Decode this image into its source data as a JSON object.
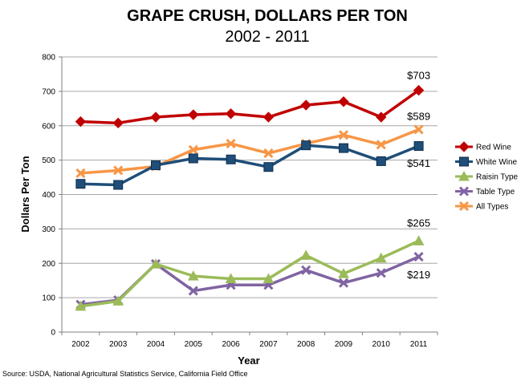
{
  "chart_data": {
    "type": "line",
    "title": "GRAPE CRUSH, DOLLARS PER TON",
    "subtitle": "2002 - 2011",
    "xlabel": "Year",
    "ylabel": "Dollars Per Ton",
    "ylim": [
      0,
      800
    ],
    "yticks": [
      "0",
      "100",
      "200",
      "300",
      "400",
      "500",
      "600",
      "700",
      "800"
    ],
    "categories": [
      "2002",
      "2003",
      "2004",
      "2005",
      "2006",
      "2007",
      "2008",
      "2009",
      "2010",
      "2011"
    ],
    "grid": "horizontal",
    "legend_position": "right",
    "series": [
      {
        "name": "Red Wine",
        "color": "#c00000",
        "marker": "diamond",
        "values": [
          612,
          608,
          625,
          632,
          635,
          625,
          660,
          670,
          625,
          703
        ]
      },
      {
        "name": "White Wine",
        "color": "#1f4e79",
        "marker": "square",
        "values": [
          431,
          428,
          485,
          505,
          502,
          480,
          543,
          535,
          497,
          541
        ]
      },
      {
        "name": "Raisin Type",
        "color": "#9bbb59",
        "marker": "triangle",
        "values": [
          75,
          90,
          198,
          163,
          155,
          155,
          223,
          170,
          215,
          265
        ]
      },
      {
        "name": "Table Type",
        "color": "#8064a2",
        "marker": "x",
        "values": [
          80,
          93,
          198,
          120,
          137,
          137,
          180,
          143,
          172,
          219
        ]
      },
      {
        "name": "All Types",
        "color": "#f79646",
        "marker": "x",
        "values": [
          462,
          470,
          482,
          530,
          548,
          520,
          548,
          573,
          545,
          589
        ]
      }
    ],
    "annotations": [
      {
        "text": "$703",
        "series": "Red Wine",
        "category": "2011"
      },
      {
        "text": "$589",
        "series": "All Types",
        "category": "2011"
      },
      {
        "text": "$541",
        "series": "White Wine",
        "category": "2011"
      },
      {
        "text": "$265",
        "series": "Raisin Type",
        "category": "2011"
      },
      {
        "text": "$219",
        "series": "Table Type",
        "category": "2011"
      }
    ]
  },
  "source": "Source: USDA, National Agricultural Statistics Service, California Field Office"
}
